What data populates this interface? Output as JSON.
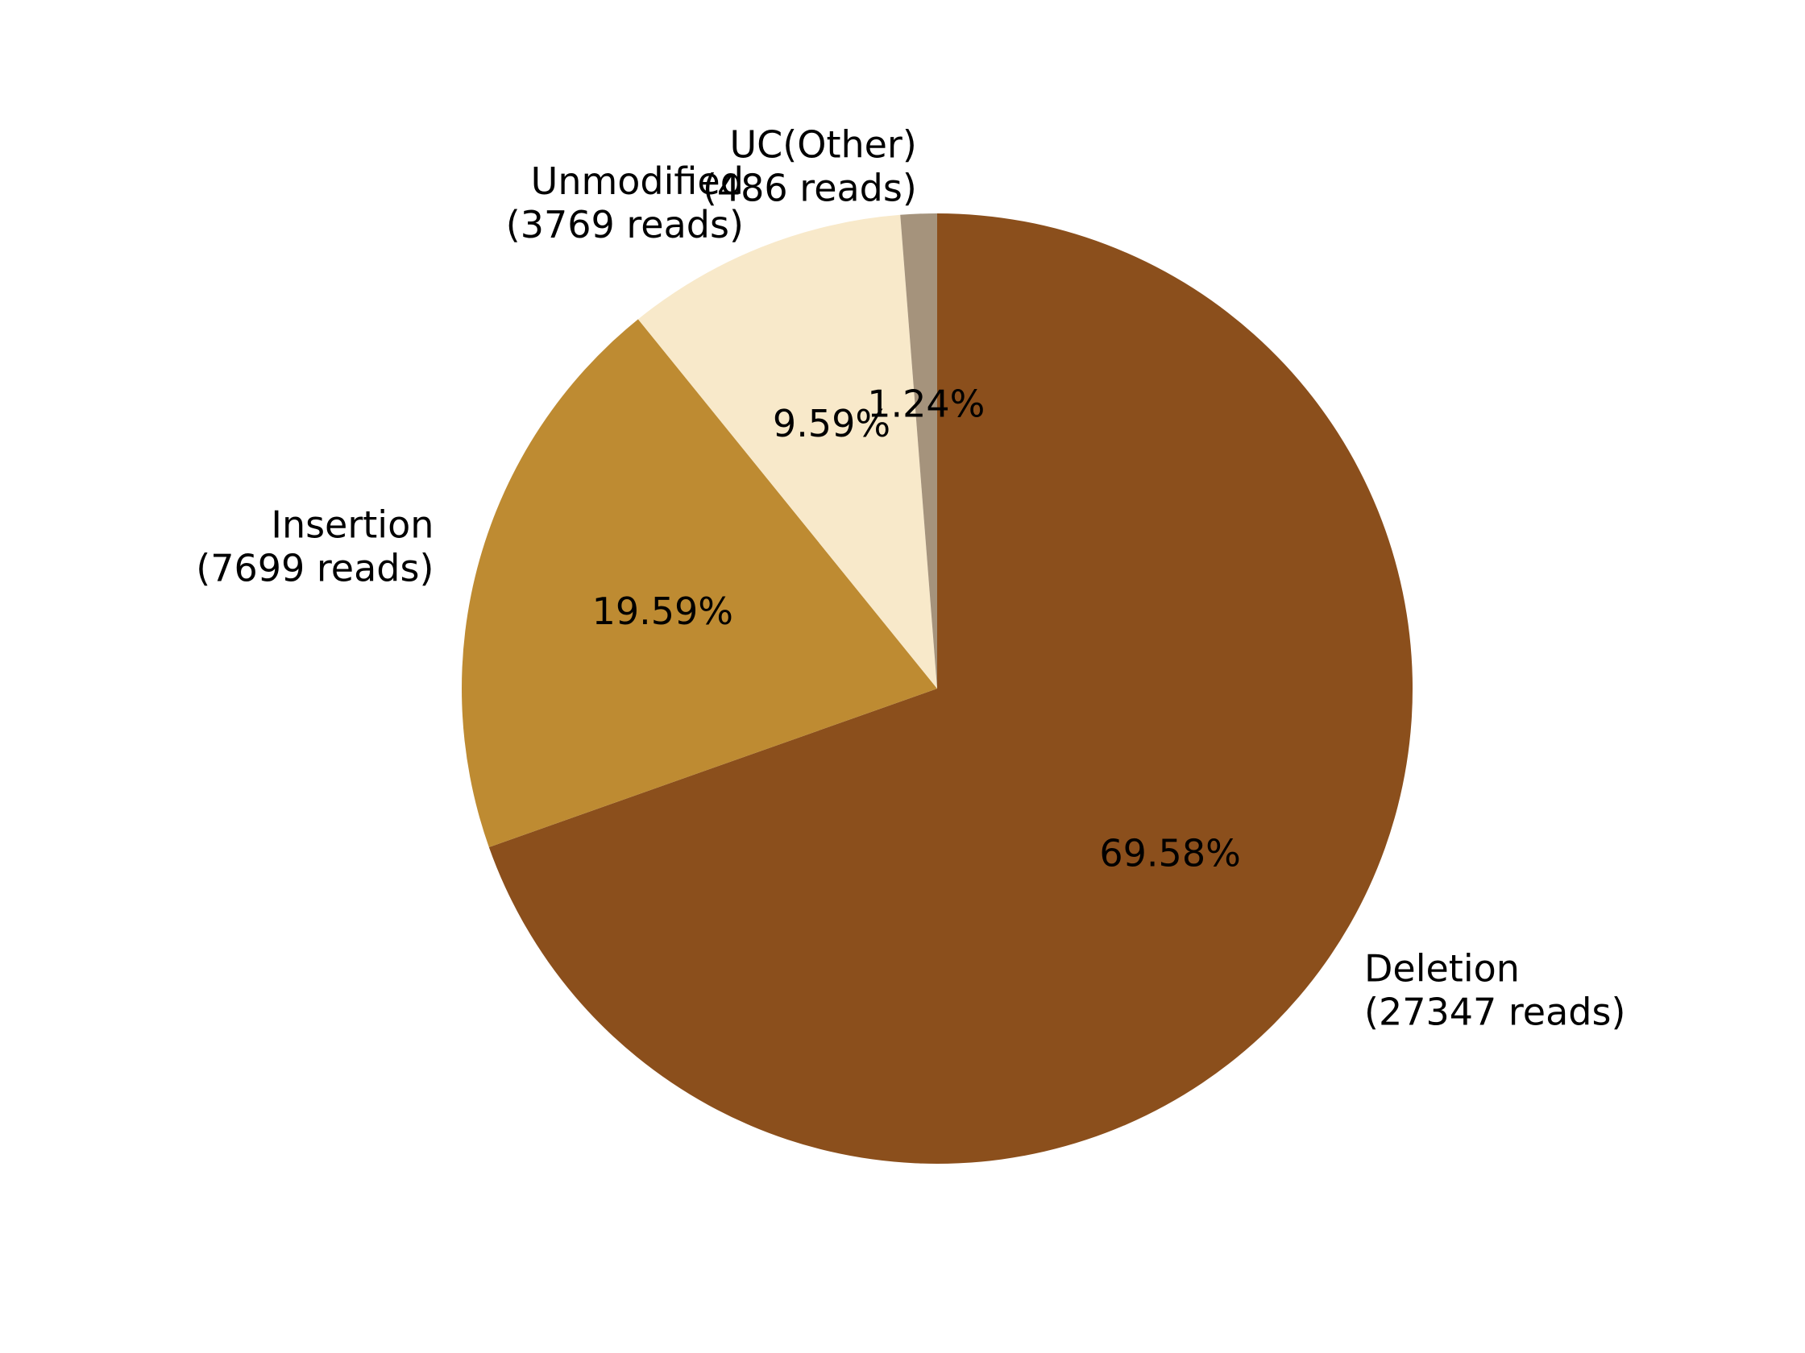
{
  "chart_data": {
    "type": "pie",
    "title": "",
    "start_angle_deg": 90,
    "direction": "clockwise",
    "slices": [
      {
        "category": "Deletion",
        "reads_label": "(27347 reads)",
        "value": 27347,
        "percent_label": "69.58%",
        "color": "#8B4F1C"
      },
      {
        "category": "Insertion",
        "reads_label": "(7699 reads)",
        "value": 7699,
        "percent_label": "19.59%",
        "color": "#BE8B32"
      },
      {
        "category": "Unmodified",
        "reads_label": "(3769 reads)",
        "value": 3769,
        "percent_label": "9.59%",
        "color": "#F8E9CA"
      },
      {
        "category": "UC(Other)",
        "reads_label": "(486 reads)",
        "value": 486,
        "percent_label": "1.24%",
        "color": "#A5937C"
      }
    ]
  }
}
